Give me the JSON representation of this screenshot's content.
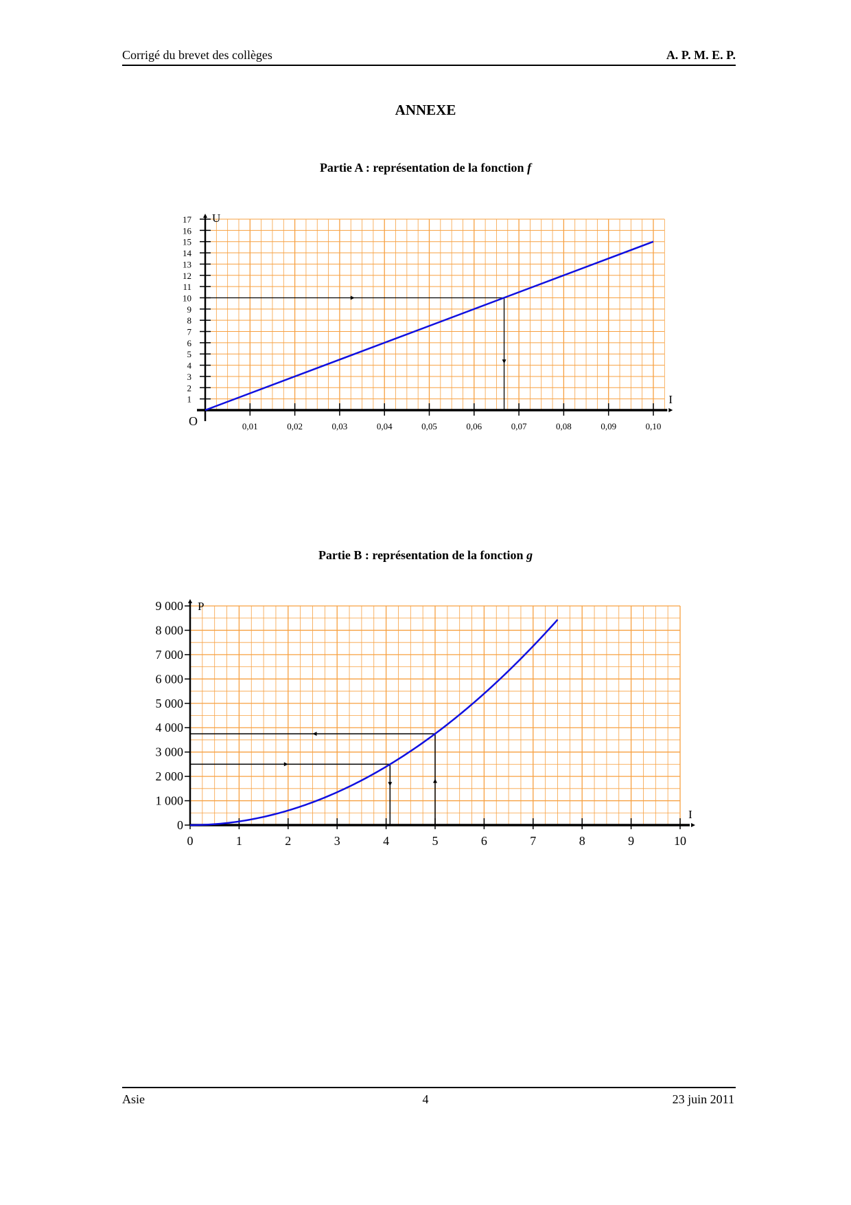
{
  "header": {
    "left": "Corrigé du brevet des collèges",
    "right": "A. P. M. E. P."
  },
  "title": "ANNEXE",
  "footer": {
    "left": "Asie",
    "center": "4",
    "right": "23 juin 2011"
  },
  "colors": {
    "grid": "#f7a040",
    "curve": "#1010e0",
    "axes": "#000000"
  },
  "chart_data": [
    {
      "type": "line",
      "title": "Partie A : représentation de la fonction",
      "function_name": "f",
      "xlabel": "I",
      "ylabel": "U",
      "origin_label": "O",
      "xlim": [
        0,
        0.1
      ],
      "ylim": [
        0,
        17
      ],
      "x_ticks": [
        "0,01",
        "0,02",
        "0,03",
        "0,04",
        "0,05",
        "0,06",
        "0,07",
        "0,08",
        "0,09",
        "0,10"
      ],
      "y_ticks": [
        "1",
        "2",
        "3",
        "4",
        "5",
        "6",
        "7",
        "8",
        "9",
        "10",
        "11",
        "12",
        "13",
        "14",
        "15",
        "16",
        "17"
      ],
      "grid": true,
      "series": [
        {
          "x": [
            0,
            0.1
          ],
          "y": [
            0,
            15
          ]
        }
      ],
      "construction": [
        {
          "from_y": 10,
          "to_x": 0.0667
        }
      ]
    },
    {
      "type": "line",
      "title": "Partie B : représentation de la fonction",
      "function_name": "g",
      "xlabel": "I",
      "ylabel": "P",
      "xlim": [
        0,
        10
      ],
      "ylim": [
        0,
        9000
      ],
      "x_ticks": [
        "0",
        "1",
        "2",
        "3",
        "4",
        "5",
        "6",
        "7",
        "8",
        "9",
        "10"
      ],
      "y_ticks": [
        "0",
        "1 000",
        "2 000",
        "3 000",
        "4 000",
        "5 000",
        "6 000",
        "7 000",
        "8 000",
        "9 000"
      ],
      "grid": true,
      "series": [
        {
          "x": [
            0,
            0.5,
            1,
            1.5,
            2,
            2.5,
            3,
            3.5,
            4,
            4.5,
            5,
            5.5,
            6,
            6.5,
            7,
            7.5
          ],
          "y": [
            0,
            37.5,
            150,
            337.5,
            600,
            937.5,
            1350,
            1837.5,
            2400,
            3037.5,
            3750,
            4537.5,
            5400,
            6337.5,
            7350,
            8437.5
          ]
        }
      ],
      "construction": [
        {
          "from_y": 2500,
          "to_x": 4.08
        },
        {
          "from_x": 5,
          "to_y": 3750
        }
      ]
    }
  ]
}
